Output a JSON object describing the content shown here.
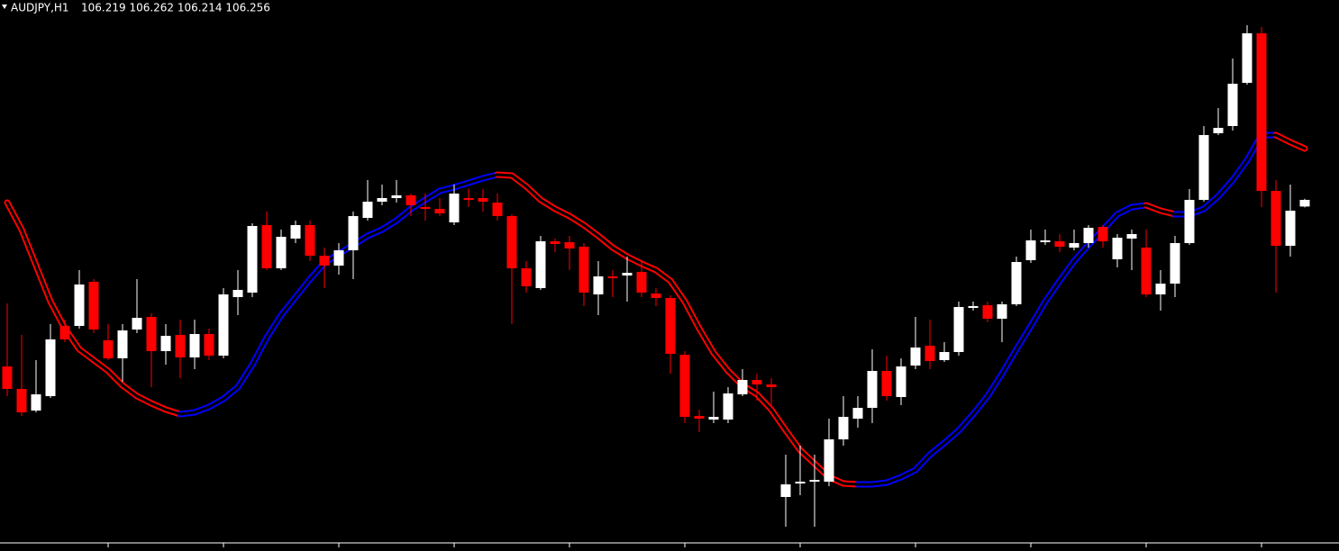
{
  "chart_data": {
    "type": "candlestick",
    "symbol": "AUDJPY,H1",
    "quote": "106.219 106.262 106.214 106.256",
    "ylim": [
      104.366,
      107.366
    ],
    "up_color": "#ffffff",
    "down_color": "#ff0000",
    "open": [
      105.331,
      105.206,
      105.086,
      105.166,
      105.556,
      105.556,
      105.801,
      105.476,
      105.376,
      105.536,
      105.606,
      105.416,
      105.506,
      105.381,
      105.511,
      105.391,
      105.716,
      105.741,
      106.116,
      105.876,
      106.041,
      106.116,
      105.946,
      105.891,
      105.976,
      106.156,
      106.246,
      106.266,
      106.281,
      106.216,
      106.206,
      106.131,
      106.266,
      106.266,
      106.241,
      106.166,
      105.876,
      105.766,
      106.026,
      106.021,
      105.996,
      105.731,
      105.831,
      105.836,
      105.856,
      105.736,
      105.711,
      105.396,
      105.056,
      105.036,
      105.036,
      105.176,
      105.256,
      105.231,
      104.606,
      104.681,
      104.691,
      104.691,
      104.926,
      105.041,
      105.101,
      105.306,
      105.161,
      105.336,
      105.446,
      105.366,
      105.411,
      105.656,
      105.671,
      105.596,
      105.676,
      105.921,
      106.021,
      106.026,
      105.991,
      106.016,
      106.106,
      105.926,
      106.041,
      105.991,
      105.731,
      105.791,
      106.016,
      106.256,
      106.626,
      106.666,
      106.906,
      107.181,
      106.306,
      106.001,
      106.219
    ],
    "high": [
      105.681,
      105.506,
      105.366,
      105.566,
      105.591,
      105.866,
      105.816,
      105.566,
      105.566,
      105.816,
      105.626,
      105.566,
      105.591,
      105.591,
      105.541,
      105.766,
      105.866,
      106.126,
      106.191,
      106.091,
      106.141,
      106.141,
      105.991,
      106.016,
      106.191,
      106.366,
      106.341,
      106.366,
      106.291,
      106.291,
      106.266,
      106.341,
      106.316,
      106.316,
      106.291,
      106.176,
      105.916,
      106.056,
      106.041,
      106.056,
      106.016,
      105.916,
      105.866,
      105.941,
      105.916,
      105.766,
      105.726,
      105.416,
      105.091,
      105.191,
      105.216,
      105.316,
      105.291,
      105.266,
      104.841,
      104.891,
      104.841,
      105.041,
      105.166,
      105.166,
      105.426,
      105.391,
      105.376,
      105.606,
      105.591,
      105.466,
      105.691,
      105.691,
      105.691,
      105.691,
      105.941,
      106.091,
      106.091,
      106.066,
      106.091,
      106.116,
      106.116,
      106.066,
      106.091,
      106.091,
      105.866,
      106.056,
      106.316,
      106.666,
      106.766,
      107.041,
      107.226,
      107.216,
      106.366,
      106.341,
      106.262
    ],
    "low": [
      105.166,
      105.056,
      105.076,
      105.156,
      105.466,
      105.541,
      105.516,
      105.366,
      105.246,
      105.516,
      105.216,
      105.341,
      105.266,
      105.316,
      105.366,
      105.376,
      105.616,
      105.716,
      105.866,
      105.866,
      106.016,
      105.916,
      105.766,
      105.841,
      105.816,
      106.141,
      106.226,
      106.241,
      106.166,
      106.141,
      106.166,
      106.116,
      106.216,
      106.191,
      106.141,
      105.566,
      105.741,
      105.756,
      105.966,
      105.866,
      105.666,
      105.616,
      105.716,
      105.691,
      105.716,
      105.666,
      105.291,
      105.016,
      104.966,
      105.016,
      105.016,
      105.166,
      105.141,
      105.116,
      104.441,
      104.616,
      104.441,
      104.666,
      104.891,
      104.991,
      105.016,
      105.141,
      105.116,
      105.316,
      105.316,
      105.356,
      105.391,
      105.641,
      105.576,
      105.466,
      105.666,
      105.906,
      106.006,
      105.966,
      105.976,
      105.991,
      105.991,
      105.881,
      105.866,
      105.716,
      105.641,
      105.716,
      106.006,
      106.246,
      106.616,
      106.641,
      106.896,
      106.216,
      105.741,
      105.941,
      106.214
    ],
    "close": [
      105.206,
      105.076,
      105.176,
      105.481,
      105.481,
      105.786,
      105.536,
      105.376,
      105.531,
      105.601,
      105.416,
      105.501,
      105.381,
      105.511,
      105.391,
      105.731,
      105.756,
      106.111,
      105.876,
      106.051,
      106.116,
      105.946,
      105.891,
      105.976,
      106.166,
      106.246,
      106.266,
      106.281,
      106.226,
      106.206,
      106.181,
      106.291,
      106.256,
      106.246,
      106.166,
      105.876,
      105.776,
      106.026,
      106.011,
      105.986,
      105.741,
      105.831,
      105.821,
      105.851,
      105.741,
      105.711,
      105.401,
      105.051,
      105.041,
      105.051,
      105.181,
      105.256,
      105.231,
      105.216,
      104.676,
      104.691,
      104.701,
      104.926,
      105.051,
      105.101,
      105.306,
      105.166,
      105.331,
      105.436,
      105.361,
      105.411,
      105.661,
      105.666,
      105.596,
      105.676,
      105.911,
      106.031,
      106.031,
      105.996,
      106.016,
      106.101,
      106.026,
      106.046,
      106.066,
      105.731,
      105.791,
      106.016,
      106.256,
      106.616,
      106.656,
      106.901,
      107.181,
      106.306,
      106.001,
      106.196,
      106.256
    ],
    "ma": {
      "rise_color": "#0000ff",
      "fall_color": "#ff0000",
      "values": [
        106.241,
        106.091,
        105.891,
        105.691,
        105.541,
        105.426,
        105.366,
        105.306,
        105.226,
        105.166,
        105.126,
        105.091,
        105.066,
        105.076,
        105.106,
        105.151,
        105.216,
        105.341,
        105.491,
        105.616,
        105.716,
        105.816,
        105.906,
        105.956,
        106.006,
        106.056,
        106.091,
        106.141,
        106.206,
        106.256,
        106.306,
        106.326,
        106.351,
        106.376,
        106.396,
        106.391,
        106.331,
        106.256,
        106.206,
        106.166,
        106.116,
        106.056,
        105.991,
        105.941,
        105.901,
        105.866,
        105.806,
        105.691,
        105.541,
        105.406,
        105.306,
        105.226,
        105.176,
        105.091,
        104.976,
        104.866,
        104.791,
        104.716,
        104.681,
        104.676,
        104.676,
        104.686,
        104.716,
        104.756,
        104.841,
        104.906,
        104.976,
        105.066,
        105.166,
        105.291,
        105.426,
        105.556,
        105.691,
        105.806,
        105.916,
        106.006,
        106.091,
        106.176,
        106.216,
        106.226,
        106.196,
        106.176,
        106.176,
        106.206,
        106.276,
        106.366,
        106.476,
        106.616,
        106.616,
        106.576,
        106.541
      ]
    }
  }
}
